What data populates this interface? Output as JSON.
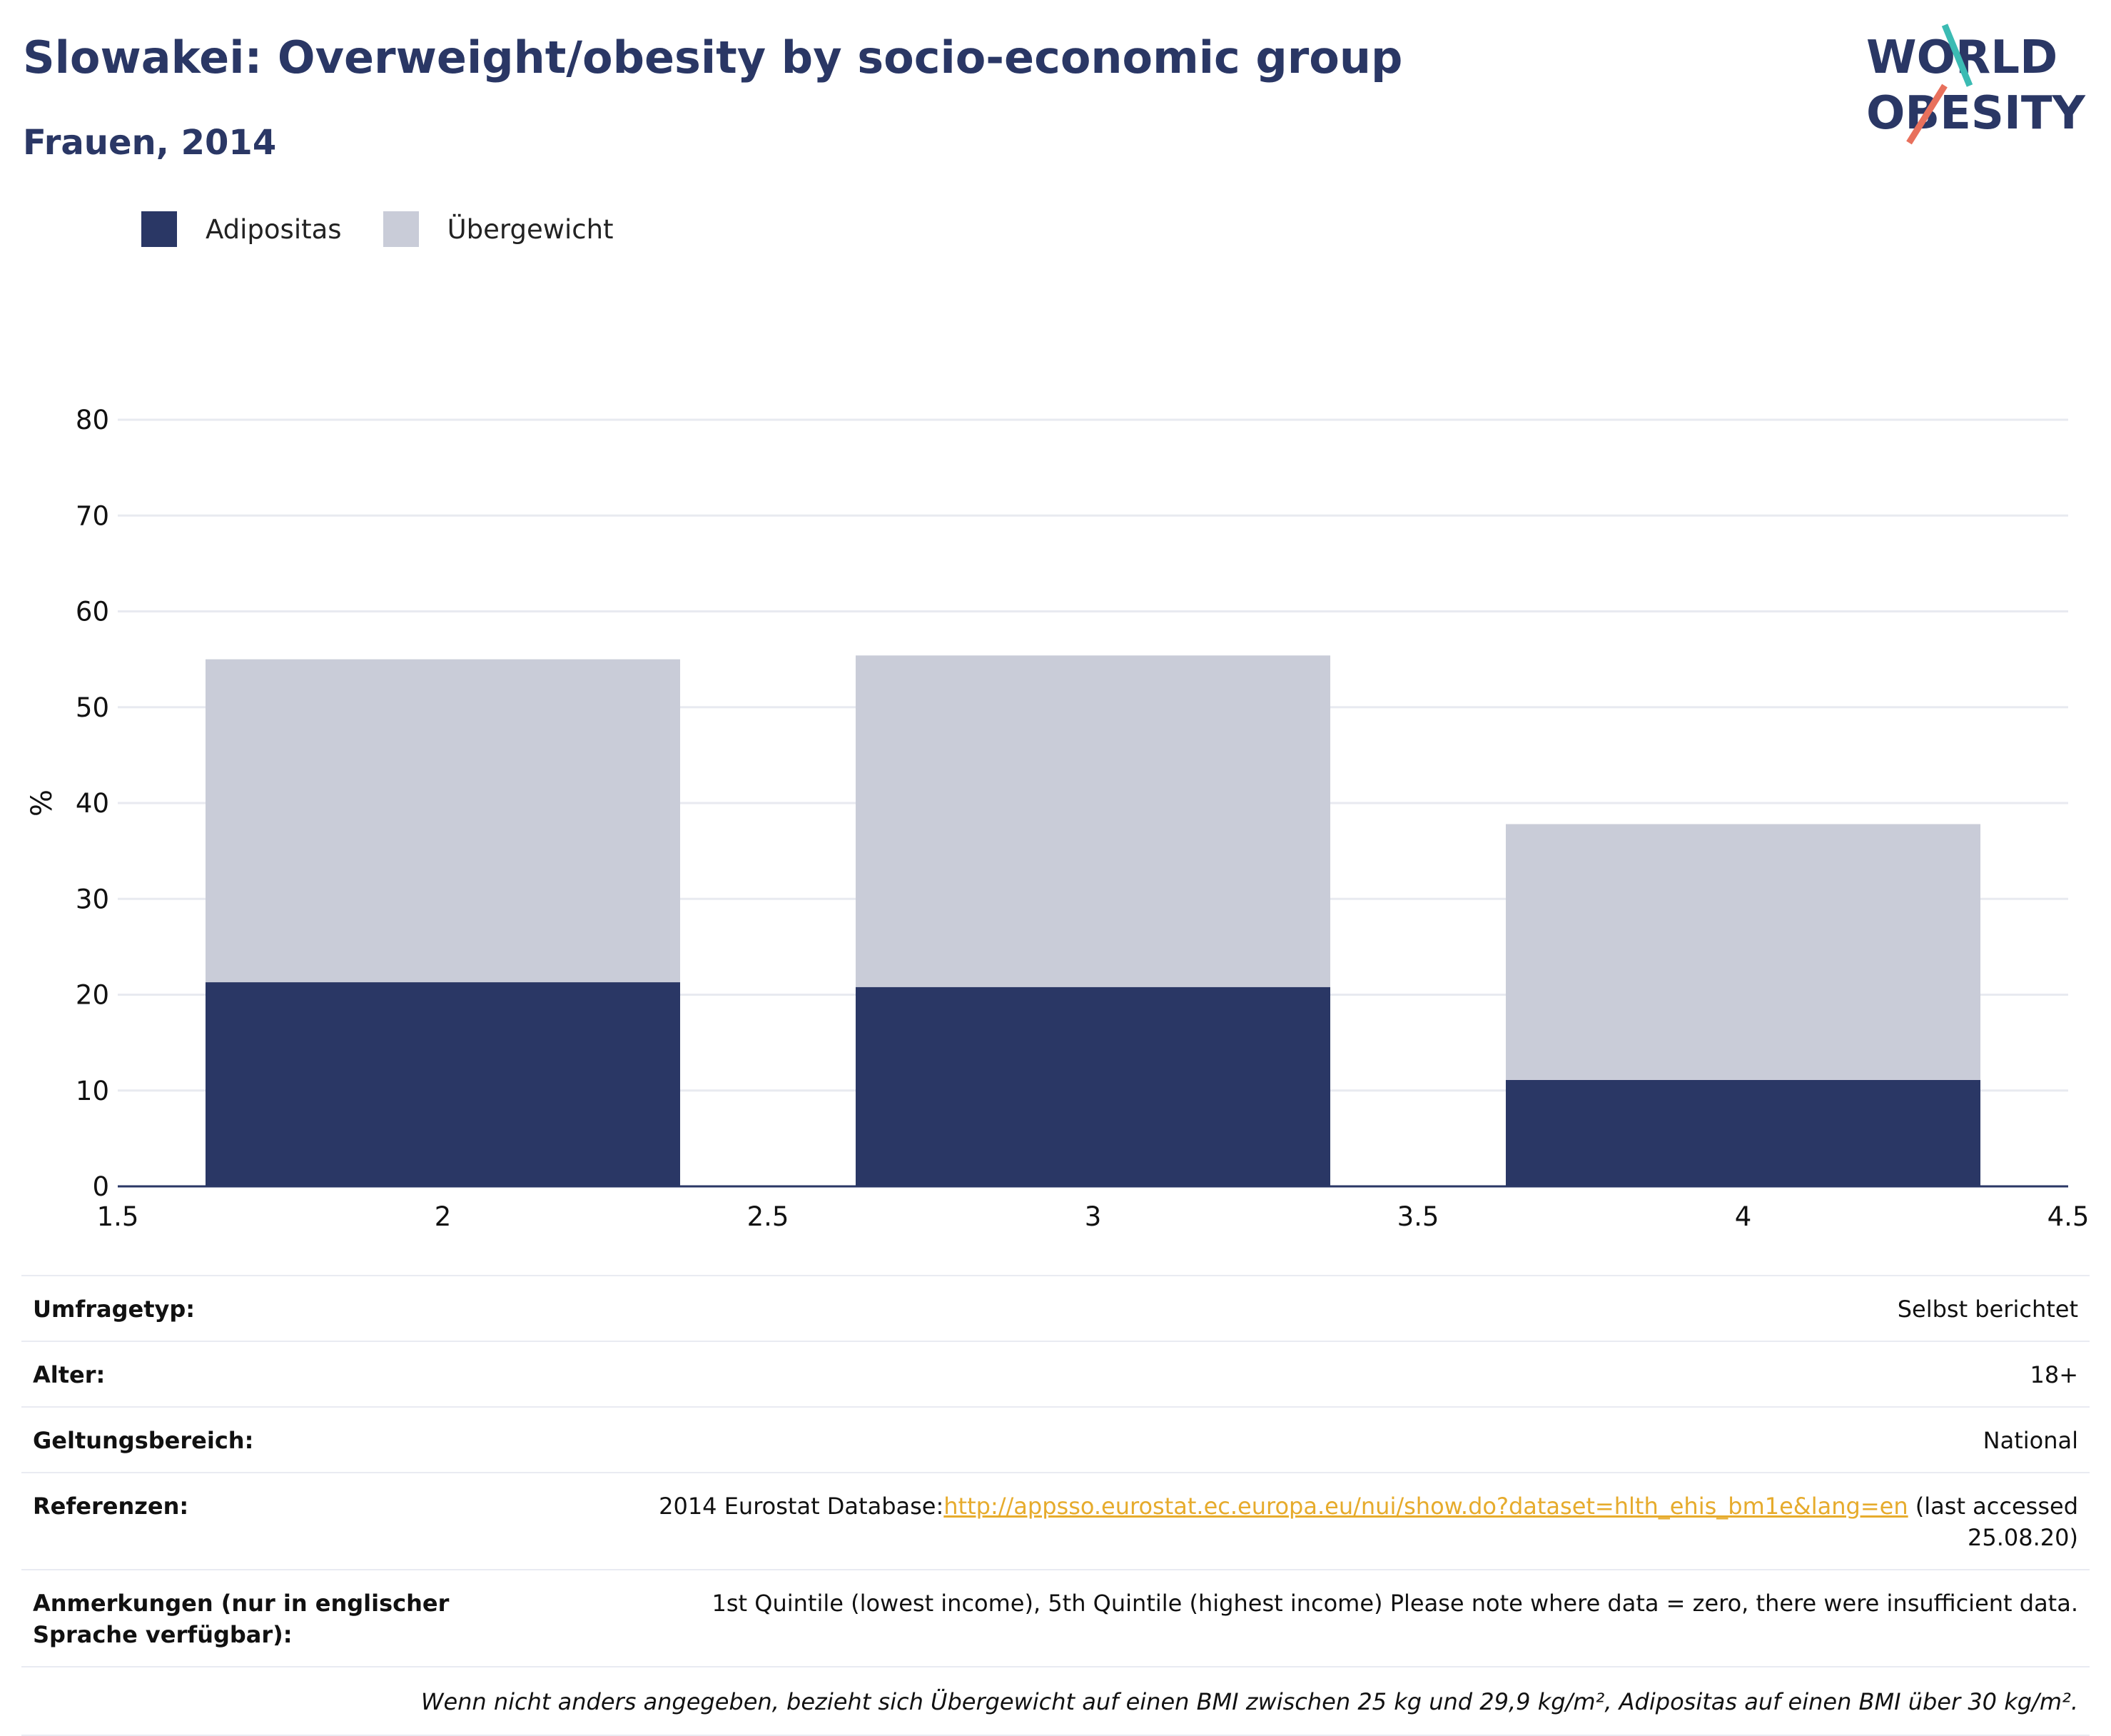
{
  "header": {
    "title": "Slowakei: Overweight/obesity by socio-economic group",
    "subtitle": "Frauen, 2014"
  },
  "logo": {
    "line1": "WORLD",
    "line2": "OBESITY",
    "colors": {
      "text": "#2a3765",
      "slash_teal": "#3bbbb3",
      "slash_coral": "#e8705c"
    }
  },
  "colors": {
    "obesity": "#2a3765",
    "overweight": "#c9ccd8",
    "grid": "#e8eaf0",
    "axis": "#2a3765"
  },
  "chart_data": {
    "type": "bar",
    "stacked": true,
    "x": [
      2,
      3,
      4
    ],
    "series": [
      {
        "name": "Adipositas",
        "color": "#2a3765",
        "values": [
          21.3,
          20.8,
          11.1
        ]
      },
      {
        "name": "Übergewicht",
        "color": "#c9ccd8",
        "values": [
          33.7,
          34.6,
          26.7
        ]
      }
    ],
    "totals": [
      55.0,
      55.4,
      37.8
    ],
    "xlim": [
      1.5,
      4.5
    ],
    "ylim": [
      0,
      80
    ],
    "xticks": [
      "1.5",
      "2",
      "2.5",
      "3",
      "3.5",
      "4",
      "4.5"
    ],
    "yticks": [
      "0",
      "10",
      "20",
      "30",
      "40",
      "50",
      "60",
      "70",
      "80"
    ],
    "ylabel": "%",
    "xlabel": "",
    "grid": true,
    "legend_position": "top-left"
  },
  "info": {
    "rows": [
      {
        "label": "Umfragetyp:",
        "value": "Selbst berichtet"
      },
      {
        "label": "Alter:",
        "value": "18+"
      },
      {
        "label": "Geltungsbereich:",
        "value": "National"
      }
    ],
    "reference": {
      "label": "Referenzen:",
      "prefix": "2014 Eurostat Database:",
      "link": "http://appsso.eurostat.ec.europa.eu/nui/show.do?dataset=hlth_ehis_bm1e&lang=en",
      "suffix": " (last accessed 25.08.20)"
    },
    "notes": {
      "label": "Anmerkungen (nur in englischer Sprache verfügbar):",
      "value": "1st Quintile (lowest income), 5th Quintile (highest income) Please note where data = zero, there were insufficient data."
    },
    "footnote": "Wenn nicht anders angegeben, bezieht sich Übergewicht auf einen BMI zwischen 25 kg und 29,9 kg/m², Adipositas auf einen BMI über 30 kg/m²."
  }
}
